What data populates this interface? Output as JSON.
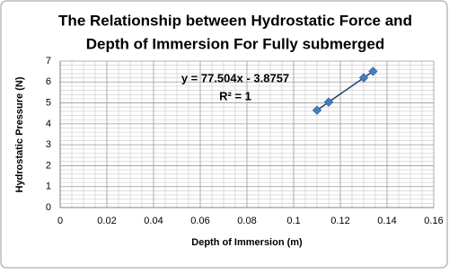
{
  "chart_data": {
    "type": "scatter",
    "title": [
      "The Relationship between Hydrostatic Force and",
      "Depth of Immersion For Fully submerged"
    ],
    "x_label": "Depth of Immersion (m)",
    "y_label": "Hydrostatic Pressure (N)",
    "annotations": [
      "y = 77.504x - 3.8757",
      "R² = 1"
    ],
    "series": [
      {
        "color": "#4a7ebb",
        "x": [
          0.11,
          0.115,
          0.13,
          0.134
        ],
        "values": [
          4.65,
          5.04,
          6.2,
          6.51
        ]
      }
    ],
    "trendline_color": "#1f3f6e",
    "xlim": [
      0,
      0.16
    ],
    "xticks": [
      0,
      0.02,
      0.04,
      0.06,
      0.08,
      0.1,
      0.12,
      0.14,
      0.16
    ],
    "ylim": [
      0,
      7
    ],
    "yticks": [
      0,
      1,
      2,
      3,
      4,
      5,
      6,
      7
    ],
    "grid": true,
    "minor_grid": true
  }
}
